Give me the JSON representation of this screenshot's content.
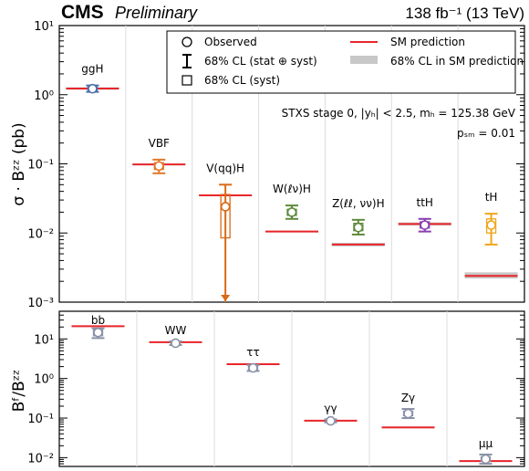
{
  "header": {
    "experiment": "CMS",
    "status": "Preliminary",
    "lumi": "138 fb⁻¹ (13 TeV)"
  },
  "legend": {
    "observed": "Observed",
    "cl_total": "68% CL (stat ⊕ syst)",
    "cl_syst": "68% CL (syst)",
    "sm": "SM prediction",
    "sm_band": "68% CL in SM prediction"
  },
  "annotations": {
    "stxs": "STXS stage 0, |yₕ| < 2.5, mₕ = 125.38 GeV",
    "psm": "pₛₘ = 0.01"
  },
  "colors": {
    "sm_line": "#e8262b",
    "sm_band": "#c8c8c8",
    "ggH": "#4b6fa8",
    "VBF": "#e07a2e",
    "VqqH": "#d96a16",
    "WlvH": "#5f8a3c",
    "ZllvvH": "#5f8a3c",
    "ttH": "#8a3fb0",
    "tH": "#f0a61a",
    "decay": "#8a92a8"
  },
  "chart_data": [
    {
      "type": "scatter",
      "panel": "top",
      "ylabel": "σ · Bᶻᶻ (pb)",
      "yscale": "log",
      "ylim": [
        0.001,
        10
      ],
      "yticks": [
        "10⁻³",
        "10⁻²",
        "10⁻¹",
        "10⁰",
        "10¹"
      ],
      "categories": [
        "ggH",
        "VBF",
        "V(qq)H",
        "W(ℓν)H",
        "Z(ℓℓ, νν)H",
        "ttH",
        "tH"
      ],
      "observed": [
        1.22,
        0.093,
        0.024,
        0.02,
        0.012,
        0.013,
        0.013
      ],
      "total_lo": [
        1.1,
        0.073,
        0.001,
        0.016,
        0.0095,
        0.0105,
        0.0068
      ],
      "total_hi": [
        1.36,
        0.115,
        0.05,
        0.025,
        0.0155,
        0.016,
        0.019
      ],
      "syst_lo": [
        1.16,
        0.083,
        0.0085,
        0.018,
        0.0108,
        0.0118,
        0.01
      ],
      "syst_hi": [
        1.29,
        0.104,
        0.036,
        0.022,
        0.0138,
        0.0145,
        0.016
      ],
      "sm": [
        1.23,
        0.098,
        0.035,
        0.0105,
        0.0068,
        0.0135,
        0.0024
      ],
      "sm_band_lo": [
        1.18,
        0.095,
        0.034,
        0.0102,
        0.0064,
        0.0128,
        0.0022
      ],
      "sm_band_hi": [
        1.28,
        0.101,
        0.036,
        0.0108,
        0.0072,
        0.0142,
        0.0027
      ],
      "open_lower": [
        false,
        false,
        true,
        false,
        false,
        false,
        false
      ]
    },
    {
      "type": "scatter",
      "panel": "bottom",
      "ylabel": "Bᶠ/Bᶻᶻ",
      "yscale": "log",
      "ylim": [
        0.006,
        50
      ],
      "yticks": [
        "10⁻²",
        "10⁻¹",
        "10⁰",
        "10¹"
      ],
      "categories": [
        "bb",
        "WW",
        "ττ",
        "γγ",
        "Zγ",
        "μμ"
      ],
      "observed": [
        14.5,
        7.8,
        1.85,
        0.085,
        0.13,
        0.0092
      ],
      "total_lo": [
        10.5,
        7.0,
        1.55,
        0.078,
        0.1,
        0.007
      ],
      "total_hi": [
        18.5,
        8.7,
        2.2,
        0.093,
        0.17,
        0.012
      ],
      "syst_lo": [
        12.0,
        7.4,
        1.7,
        0.081,
        0.115,
        0.0082
      ],
      "syst_hi": [
        17.0,
        8.3,
        2.05,
        0.09,
        0.15,
        0.0105
      ],
      "sm": [
        21.0,
        8.3,
        2.3,
        0.086,
        0.058,
        0.0082
      ],
      "sm_band_lo": [
        20.0,
        8.0,
        2.2,
        0.083,
        0.055,
        0.0078
      ],
      "sm_band_hi": [
        22.0,
        8.6,
        2.4,
        0.089,
        0.061,
        0.0086
      ]
    }
  ]
}
